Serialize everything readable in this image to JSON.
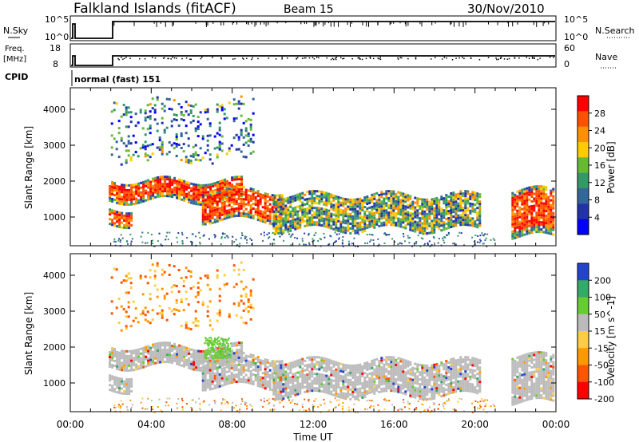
{
  "header": {
    "station": "Falkland Islands (fitACF)",
    "beam": "Beam 15",
    "date": "30/Nov/2010"
  },
  "nsky_panel": {
    "left_label": "N.Sky",
    "left_top_tick": "10^5",
    "left_bottom_tick": "10^0",
    "right_label": "N.Search",
    "right_top_tick": "10^5",
    "right_bottom_tick": "10^0"
  },
  "freq_panel": {
    "left_label_1": "Freq.",
    "left_label_2": "[MHz]",
    "left_top_tick": "18",
    "left_bottom_tick": "8",
    "right_label": "Nave",
    "right_top_tick": "60",
    "right_bottom_tick": "0"
  },
  "cpid": {
    "label": "CPID",
    "mode": "normal (fast) 151"
  },
  "chart_data": [
    {
      "type": "heatmap",
      "quantity": "Power",
      "ylabel": "Slant Range [km]",
      "y_ticks": [
        "1000",
        "2000",
        "3000",
        "4000"
      ],
      "x_ticks": [
        "00:00",
        "04:00",
        "08:00",
        "12:00",
        "16:00",
        "20:00",
        "00:00"
      ],
      "xlim_hours": [
        0,
        24
      ],
      "ylim_km": [
        200,
        4600
      ],
      "colorbar": {
        "label": "Power [dB]",
        "ticks": [
          "28",
          "24",
          "20",
          "16",
          "12",
          "8",
          "4"
        ],
        "colors": [
          "#ff0000",
          "#ff5000",
          "#ff9000",
          "#ffcc00",
          "#66bb33",
          "#339966",
          "#336699",
          "#2233aa",
          "#0000ff"
        ]
      },
      "bands": [
        {
          "t_start": 1.9,
          "t_end": 3.0,
          "r_low": 850,
          "r_high": 1300,
          "level": "strong"
        },
        {
          "t_start": 1.9,
          "t_end": 8.5,
          "r_low": 1500,
          "r_high": 2050,
          "level": "strong"
        },
        {
          "t_start": 6.5,
          "t_end": 10.5,
          "r_low": 950,
          "r_high": 1800,
          "level": "strong"
        },
        {
          "t_start": 10.0,
          "t_end": 20.2,
          "r_low": 700,
          "r_high": 1700,
          "level": "medium"
        },
        {
          "t_start": 21.8,
          "t_end": 23.9,
          "r_low": 500,
          "r_high": 1800,
          "level": "strong"
        },
        {
          "t_start": 2.0,
          "t_end": 9.0,
          "r_low": 2600,
          "r_high": 4300,
          "level": "weak"
        }
      ]
    },
    {
      "type": "heatmap",
      "quantity": "Velocity",
      "ylabel": "Slant Range [km]",
      "y_ticks": [
        "1000",
        "2000",
        "3000",
        "4000"
      ],
      "x_ticks": [
        "00:00",
        "04:00",
        "08:00",
        "12:00",
        "16:00",
        "20:00",
        "00:00"
      ],
      "xlabel": "Time UT",
      "colorbar": {
        "label": "Velocity [m s^-1]",
        "ticks": [
          "200",
          "100",
          "50",
          "15",
          "-15",
          "-50",
          "-100",
          "-200"
        ],
        "colors": [
          "#2244cc",
          "#33aa66",
          "#66cc33",
          "#bbbbbb",
          "#ffcc44",
          "#ff9900",
          "#ff5500",
          "#ff0000"
        ]
      }
    }
  ]
}
